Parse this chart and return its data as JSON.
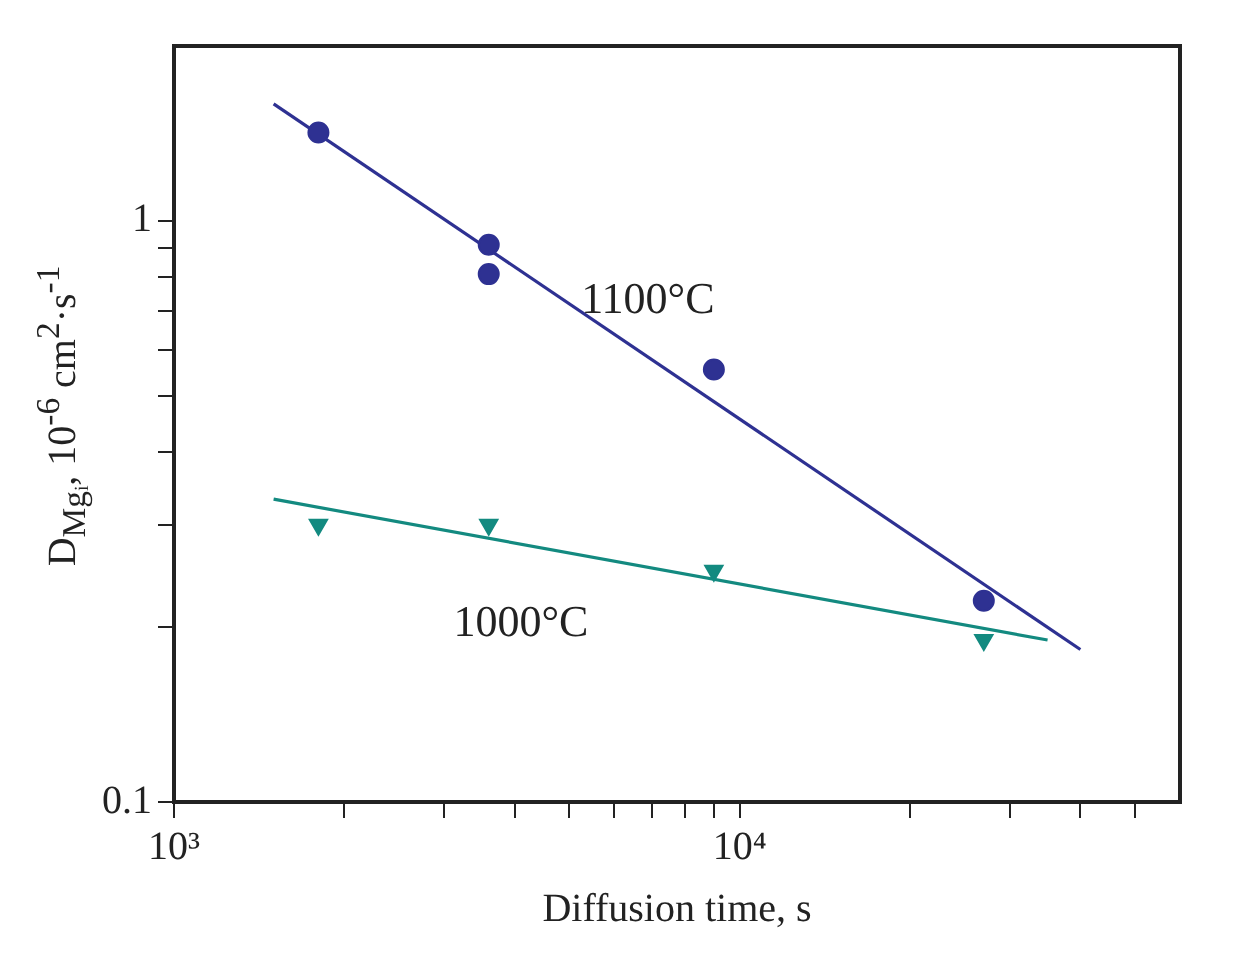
{
  "chart_data": {
    "type": "scatter",
    "xlabel": "Diffusion time, s",
    "ylabel": "D$_{Mgᵢ}$, 10$^{-6}$ cm$^{2}$·s$^{-1}$",
    "log": "xy",
    "grid": false,
    "legend": false,
    "xlim": [
      1000,
      60000
    ],
    "ylim": [
      0.1,
      2
    ],
    "xticks": [
      {
        "value": 1000,
        "label": "10³"
      },
      {
        "value": 2000,
        "label": null
      },
      {
        "value": 3000,
        "label": null
      },
      {
        "value": 4000,
        "label": null
      },
      {
        "value": 5000,
        "label": null
      },
      {
        "value": 6000,
        "label": null
      },
      {
        "value": 7000,
        "label": null
      },
      {
        "value": 8000,
        "label": null
      },
      {
        "value": 9000,
        "label": null
      },
      {
        "value": 10000,
        "label": "10⁴"
      },
      {
        "value": 20000,
        "label": null
      },
      {
        "value": 30000,
        "label": null
      },
      {
        "value": 40000,
        "label": null
      },
      {
        "value": 50000,
        "label": null
      }
    ],
    "yticks": [
      {
        "value": 0.1,
        "label": "0.1"
      },
      {
        "value": 0.2,
        "label": null
      },
      {
        "value": 0.3,
        "label": null
      },
      {
        "value": 0.4,
        "label": null
      },
      {
        "value": 0.5,
        "label": null
      },
      {
        "value": 0.6,
        "label": null
      },
      {
        "value": 0.7,
        "label": null
      },
      {
        "value": 0.8,
        "label": null
      },
      {
        "value": 0.9,
        "label": null
      },
      1
    ],
    "series": [
      {
        "type": "scatter",
        "marker": "circle",
        "color": "#2e3192",
        "x": [
          1800,
          3600,
          3600,
          9000,
          27000
        ],
        "values": [
          1.42,
          0.91,
          0.81,
          0.555,
          0.222
        ]
      },
      {
        "type": "scatter",
        "marker": "triangle",
        "color": "#138a80",
        "x": [
          1800,
          3600,
          9000,
          27000
        ],
        "values": [
          0.3,
          0.3,
          0.25,
          0.19
        ]
      },
      {
        "type": "line",
        "name": "1100°C",
        "marker": "none",
        "color": "#2e3192",
        "x": [
          1500,
          40000
        ],
        "values": [
          1.59,
          0.183
        ]
      },
      {
        "type": "line",
        "name": "1000°C",
        "marker": "none",
        "color": "#138a80",
        "x": [
          1500,
          35000
        ],
        "values": [
          0.332,
          0.19
        ]
      }
    ]
  }
}
